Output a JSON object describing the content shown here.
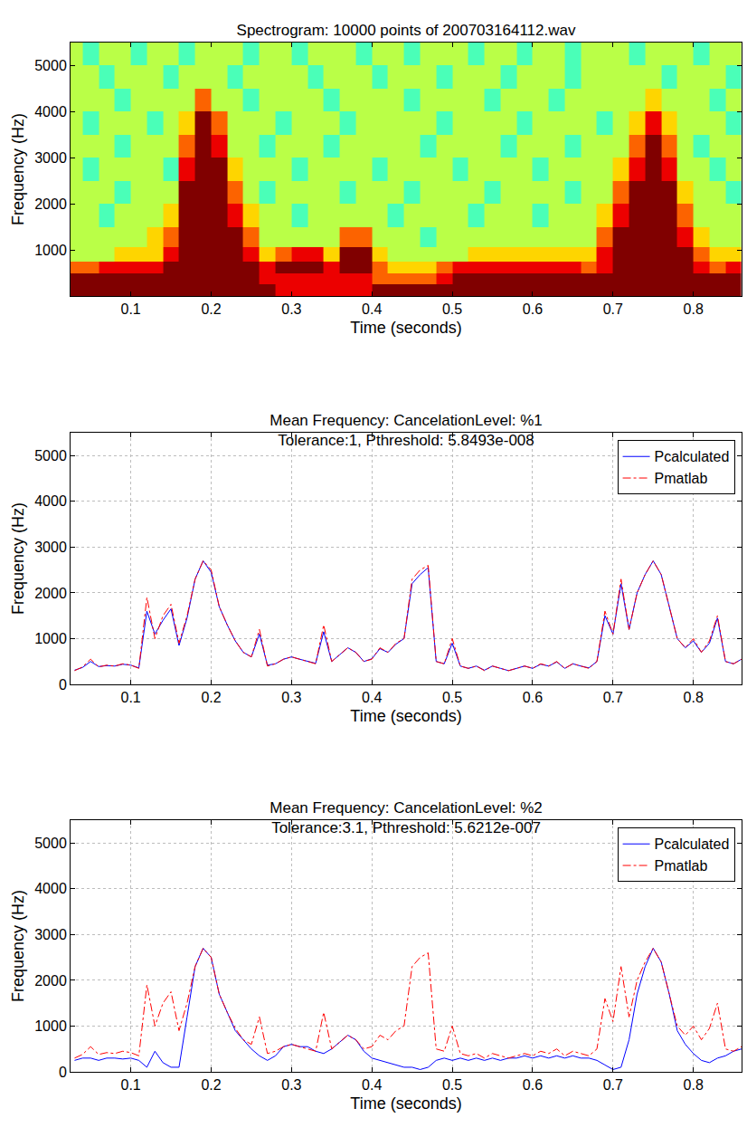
{
  "chart_data": [
    {
      "type": "heatmap",
      "title": "Spectrogram: 10000 points of 200703164112.wav",
      "x_label": "Time (seconds)",
      "y_label": "Frequency (Hz)",
      "x": [
        0.03,
        0.05,
        0.07,
        0.09,
        0.11,
        0.13,
        0.15,
        0.17,
        0.19,
        0.21,
        0.23,
        0.25,
        0.27,
        0.29,
        0.31,
        0.33,
        0.35,
        0.37,
        0.39,
        0.41,
        0.43,
        0.45,
        0.47,
        0.49,
        0.51,
        0.53,
        0.55,
        0.57,
        0.59,
        0.61,
        0.63,
        0.65,
        0.67,
        0.69,
        0.71,
        0.73,
        0.75,
        0.77,
        0.79,
        0.81,
        0.83,
        0.85
      ],
      "y": [
        125,
        375,
        625,
        875,
        1250,
        1750,
        2250,
        2750,
        3250,
        3750,
        4250,
        4750,
        5250
      ],
      "cells": [
        [
          9,
          9,
          9,
          9,
          9,
          9,
          9,
          9,
          9,
          9,
          9,
          9,
          9,
          8,
          8,
          8,
          8,
          8,
          8,
          9,
          9,
          9,
          9,
          9,
          9,
          9,
          9,
          9,
          9,
          9,
          9,
          9,
          9,
          9,
          9,
          9,
          9,
          9,
          9,
          9,
          9,
          9
        ],
        [
          9,
          9,
          9,
          9,
          9,
          9,
          9,
          9,
          9,
          9,
          9,
          9,
          8,
          8,
          8,
          8,
          8,
          8,
          8,
          7,
          7,
          7,
          7,
          8,
          9,
          9,
          9,
          9,
          9,
          9,
          9,
          9,
          9,
          9,
          9,
          9,
          9,
          9,
          9,
          9,
          9,
          9
        ],
        [
          7,
          7,
          8,
          8,
          8,
          8,
          9,
          9,
          9,
          9,
          9,
          9,
          8,
          9,
          9,
          9,
          8,
          9,
          9,
          7,
          6,
          6,
          6,
          7,
          8,
          8,
          8,
          8,
          8,
          8,
          8,
          8,
          7,
          8,
          9,
          9,
          9,
          9,
          9,
          8,
          7,
          8
        ],
        [
          5,
          5,
          5,
          6,
          6,
          6,
          8,
          9,
          9,
          9,
          9,
          8,
          6,
          7,
          8,
          8,
          6,
          9,
          9,
          6,
          5,
          5,
          5,
          5,
          5,
          6,
          6,
          6,
          6,
          6,
          6,
          6,
          6,
          8,
          9,
          9,
          9,
          9,
          9,
          7,
          6,
          6
        ],
        [
          5,
          5,
          5,
          5,
          5,
          6,
          7,
          9,
          9,
          9,
          9,
          7,
          5,
          5,
          5,
          5,
          5,
          7,
          7,
          5,
          5,
          5,
          4,
          5,
          5,
          5,
          5,
          5,
          5,
          5,
          5,
          5,
          5,
          7,
          9,
          9,
          9,
          9,
          8,
          6,
          5,
          5
        ],
        [
          5,
          5,
          4,
          5,
          5,
          5,
          6,
          9,
          9,
          9,
          8,
          6,
          5,
          5,
          4,
          5,
          5,
          5,
          5,
          5,
          4,
          5,
          5,
          5,
          5,
          4,
          5,
          5,
          5,
          4,
          5,
          5,
          5,
          6,
          8,
          9,
          9,
          9,
          7,
          5,
          5,
          5
        ],
        [
          5,
          5,
          5,
          4,
          5,
          5,
          5,
          9,
          9,
          9,
          7,
          5,
          4,
          5,
          5,
          5,
          5,
          4,
          5,
          5,
          5,
          4,
          5,
          5,
          5,
          5,
          4,
          5,
          5,
          5,
          5,
          4,
          5,
          5,
          7,
          9,
          9,
          9,
          6,
          5,
          5,
          4
        ],
        [
          5,
          4,
          5,
          5,
          5,
          5,
          4,
          8,
          9,
          9,
          6,
          5,
          5,
          5,
          4,
          5,
          5,
          5,
          5,
          4,
          5,
          5,
          5,
          5,
          4,
          5,
          5,
          5,
          5,
          4,
          5,
          5,
          5,
          5,
          6,
          8,
          9,
          8,
          5,
          5,
          4,
          5
        ],
        [
          5,
          5,
          5,
          4,
          5,
          5,
          5,
          7,
          9,
          8,
          5,
          5,
          4,
          5,
          5,
          5,
          4,
          5,
          5,
          5,
          5,
          5,
          4,
          5,
          5,
          5,
          5,
          4,
          5,
          5,
          5,
          4,
          5,
          5,
          5,
          7,
          9,
          7,
          5,
          4,
          5,
          5
        ],
        [
          5,
          4,
          5,
          5,
          5,
          4,
          5,
          6,
          9,
          7,
          5,
          5,
          5,
          4,
          5,
          5,
          5,
          4,
          5,
          5,
          5,
          5,
          5,
          4,
          5,
          5,
          5,
          5,
          4,
          5,
          5,
          5,
          5,
          4,
          5,
          6,
          8,
          6,
          5,
          5,
          5,
          4
        ],
        [
          5,
          5,
          5,
          4,
          5,
          5,
          5,
          5,
          7,
          5,
          5,
          4,
          5,
          5,
          5,
          5,
          4,
          5,
          5,
          5,
          5,
          4,
          5,
          5,
          5,
          5,
          4,
          5,
          5,
          5,
          4,
          5,
          5,
          5,
          5,
          5,
          6,
          5,
          5,
          5,
          4,
          5
        ],
        [
          5,
          5,
          4,
          5,
          5,
          5,
          4,
          5,
          5,
          5,
          4,
          5,
          5,
          5,
          5,
          4,
          5,
          5,
          5,
          4,
          5,
          5,
          5,
          4,
          5,
          5,
          5,
          4,
          5,
          5,
          5,
          4,
          5,
          5,
          5,
          5,
          5,
          4,
          5,
          5,
          5,
          4
        ],
        [
          5,
          4,
          5,
          5,
          4,
          5,
          5,
          4,
          5,
          5,
          5,
          4,
          5,
          5,
          4,
          5,
          5,
          5,
          4,
          5,
          5,
          4,
          5,
          5,
          5,
          4,
          5,
          5,
          4,
          5,
          5,
          4,
          5,
          5,
          5,
          4,
          5,
          5,
          5,
          4,
          5,
          5
        ]
      ],
      "zlim": [
        0,
        9
      ],
      "color": "Jet",
      "xlim": [
        0.025,
        0.86
      ],
      "xticks": [
        0.1,
        0.2,
        0.3,
        0.4,
        0.5,
        0.6,
        0.7,
        0.8
      ],
      "ylim": [
        0,
        5500
      ],
      "yticks": [
        1000,
        2000,
        3000,
        4000,
        5000
      ],
      "grid": false
    },
    {
      "type": "line",
      "title": [
        "Mean Frequency: CancelationLevel: %1",
        "Tolerance:1, Pthreshold: 5.8493e-008"
      ],
      "x_label": "Time (seconds)",
      "y_label": "Frequency (Hz)",
      "x": [
        0.03,
        0.04,
        0.05,
        0.06,
        0.07,
        0.08,
        0.09,
        0.1,
        0.11,
        0.12,
        0.13,
        0.14,
        0.15,
        0.16,
        0.17,
        0.18,
        0.19,
        0.2,
        0.21,
        0.22,
        0.23,
        0.24,
        0.25,
        0.26,
        0.27,
        0.28,
        0.29,
        0.3,
        0.31,
        0.32,
        0.33,
        0.34,
        0.35,
        0.36,
        0.37,
        0.38,
        0.39,
        0.4,
        0.41,
        0.42,
        0.43,
        0.44,
        0.45,
        0.46,
        0.47,
        0.48,
        0.49,
        0.5,
        0.51,
        0.52,
        0.53,
        0.54,
        0.55,
        0.56,
        0.57,
        0.58,
        0.59,
        0.6,
        0.61,
        0.62,
        0.63,
        0.64,
        0.65,
        0.66,
        0.67,
        0.68,
        0.69,
        0.7,
        0.71,
        0.72,
        0.73,
        0.74,
        0.75,
        0.76,
        0.77,
        0.78,
        0.79,
        0.8,
        0.81,
        0.82,
        0.83,
        0.84,
        0.85,
        0.86
      ],
      "series": [
        {
          "name": "Pcalculated",
          "color": "#0000ff",
          "line_style": "solid",
          "values": [
            310,
            370,
            500,
            390,
            410,
            400,
            440,
            420,
            360,
            1600,
            1100,
            1400,
            1650,
            850,
            1450,
            2300,
            2700,
            2450,
            1700,
            1300,
            950,
            700,
            600,
            1100,
            420,
            450,
            550,
            600,
            550,
            500,
            460,
            1150,
            500,
            650,
            800,
            700,
            500,
            560,
            780,
            700,
            880,
            1000,
            2200,
            2400,
            2550,
            500,
            450,
            900,
            400,
            350,
            400,
            310,
            400,
            350,
            300,
            350,
            400,
            350,
            440,
            400,
            490,
            350,
            450,
            400,
            360,
            500,
            1500,
            1100,
            2200,
            1200,
            2000,
            2400,
            2700,
            2400,
            1700,
            1000,
            800,
            950,
            700,
            900,
            1450,
            500,
            450,
            550
          ]
        },
        {
          "name": "Pmatlab",
          "color": "#ff0000",
          "line_style": "dashdot",
          "values": [
            300,
            380,
            550,
            380,
            420,
            400,
            450,
            420,
            350,
            1900,
            1000,
            1500,
            1750,
            900,
            1500,
            2300,
            2700,
            2500,
            1700,
            1300,
            950,
            700,
            600,
            1200,
            400,
            450,
            550,
            600,
            550,
            500,
            450,
            1300,
            500,
            650,
            800,
            700,
            500,
            550,
            800,
            700,
            900,
            1000,
            2300,
            2500,
            2600,
            500,
            450,
            1000,
            400,
            350,
            400,
            300,
            400,
            350,
            300,
            350,
            400,
            350,
            450,
            400,
            500,
            350,
            450,
            400,
            350,
            500,
            1600,
            1100,
            2300,
            1200,
            2000,
            2400,
            2700,
            2400,
            1700,
            1000,
            800,
            1000,
            700,
            950,
            1500,
            500,
            450,
            550
          ]
        }
      ],
      "xlim": [
        0.025,
        0.86
      ],
      "xticks": [
        0.1,
        0.2,
        0.3,
        0.4,
        0.5,
        0.6,
        0.7,
        0.8
      ],
      "ylim": [
        0,
        5500
      ],
      "yticks": [
        0,
        1000,
        2000,
        3000,
        4000,
        5000
      ],
      "grid": true,
      "legend": "top right"
    },
    {
      "type": "line",
      "title": [
        "Mean Frequency: CancelationLevel: %2",
        "Tolerance:3.1, Pthreshold: 5.6212e-007"
      ],
      "x_label": "Time (seconds)",
      "y_label": "Frequency (Hz)",
      "x": [
        0.03,
        0.04,
        0.05,
        0.06,
        0.07,
        0.08,
        0.09,
        0.1,
        0.11,
        0.12,
        0.13,
        0.14,
        0.15,
        0.16,
        0.17,
        0.18,
        0.19,
        0.2,
        0.21,
        0.22,
        0.23,
        0.24,
        0.25,
        0.26,
        0.27,
        0.28,
        0.29,
        0.3,
        0.31,
        0.32,
        0.33,
        0.34,
        0.35,
        0.36,
        0.37,
        0.38,
        0.39,
        0.4,
        0.41,
        0.42,
        0.43,
        0.44,
        0.45,
        0.46,
        0.47,
        0.48,
        0.49,
        0.5,
        0.51,
        0.52,
        0.53,
        0.54,
        0.55,
        0.56,
        0.57,
        0.58,
        0.59,
        0.6,
        0.61,
        0.62,
        0.63,
        0.64,
        0.65,
        0.66,
        0.67,
        0.68,
        0.69,
        0.7,
        0.71,
        0.72,
        0.73,
        0.74,
        0.75,
        0.76,
        0.77,
        0.78,
        0.79,
        0.8,
        0.81,
        0.82,
        0.83,
        0.84,
        0.85,
        0.86
      ],
      "series": [
        {
          "name": "Pcalculated",
          "color": "#0000ff",
          "line_style": "solid",
          "values": [
            250,
            300,
            300,
            250,
            300,
            300,
            280,
            300,
            250,
            100,
            450,
            200,
            100,
            100,
            1200,
            2300,
            2700,
            2500,
            1700,
            1300,
            900,
            700,
            500,
            350,
            250,
            350,
            550,
            600,
            550,
            550,
            450,
            400,
            500,
            650,
            800,
            700,
            450,
            300,
            250,
            200,
            150,
            100,
            100,
            50,
            100,
            250,
            300,
            250,
            300,
            250,
            300,
            250,
            300,
            250,
            300,
            300,
            350,
            300,
            350,
            300,
            350,
            300,
            350,
            300,
            300,
            250,
            150,
            50,
            100,
            700,
            1700,
            2300,
            2700,
            2400,
            1700,
            900,
            600,
            400,
            250,
            200,
            300,
            350,
            450,
            500
          ]
        },
        {
          "name": "Pmatlab",
          "color": "#ff0000",
          "line_style": "dashdot",
          "values": [
            300,
            380,
            550,
            380,
            420,
            400,
            450,
            420,
            350,
            1900,
            1000,
            1500,
            1750,
            900,
            1500,
            2300,
            2700,
            2500,
            1700,
            1300,
            950,
            700,
            600,
            1200,
            400,
            450,
            550,
            600,
            550,
            500,
            450,
            1300,
            500,
            650,
            800,
            700,
            500,
            550,
            800,
            700,
            900,
            1000,
            2300,
            2500,
            2600,
            500,
            450,
            1000,
            400,
            350,
            400,
            300,
            400,
            350,
            300,
            350,
            400,
            350,
            450,
            400,
            500,
            350,
            450,
            400,
            350,
            500,
            1600,
            1100,
            2300,
            1200,
            2000,
            2400,
            2700,
            2400,
            1700,
            1000,
            800,
            1000,
            700,
            950,
            1500,
            500,
            450,
            550
          ]
        }
      ],
      "xlim": [
        0.025,
        0.86
      ],
      "xticks": [
        0.1,
        0.2,
        0.3,
        0.4,
        0.5,
        0.6,
        0.7,
        0.8
      ],
      "ylim": [
        0,
        5500
      ],
      "yticks": [
        0,
        1000,
        2000,
        3000,
        4000,
        5000
      ],
      "grid": true,
      "legend": "top right"
    }
  ]
}
